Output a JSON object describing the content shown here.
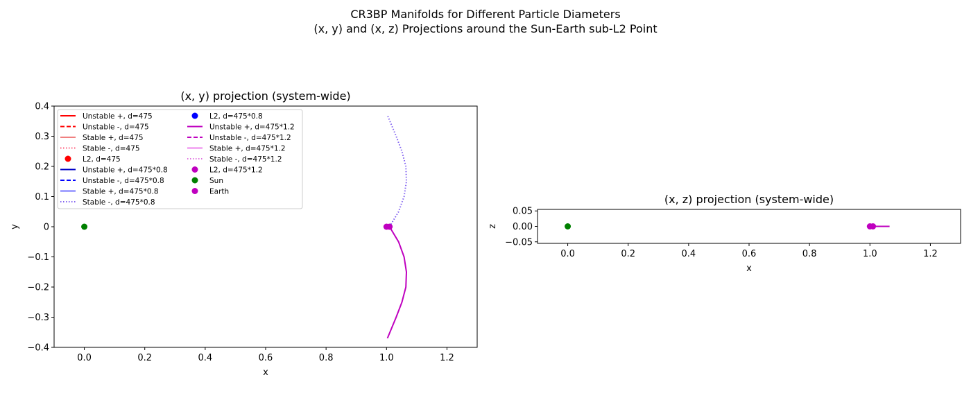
{
  "figure": {
    "suptitle_line1": "CR3BP Manifolds for Different Particle Diameters",
    "suptitle_line2": "(x, y) and (x, z) Projections around the Sun-Earth sub-L2 Point"
  },
  "colors": {
    "red": "#ff0000",
    "lightred": "#f08080",
    "pink": "#ff5a7a",
    "blue": "#0000ff",
    "darkblue": "#0000c8",
    "lightblue": "#7070ff",
    "purpleblue": "#8060f0",
    "magenta": "#bf00bf",
    "violet": "#ee82ee",
    "lightmagenta": "#e070e0",
    "green": "#008000"
  },
  "chart_data": [
    {
      "type": "line",
      "title": "(x, y) projection (system-wide)",
      "xlabel": "x",
      "ylabel": "y",
      "xlim": [
        -0.1,
        1.3
      ],
      "ylim": [
        -0.4,
        0.4
      ],
      "xticks": [
        "0.0",
        "0.2",
        "0.4",
        "0.6",
        "0.8",
        "1.0",
        "1.2"
      ],
      "yticks": [
        "0.4",
        "0.3",
        "0.2",
        "0.1",
        "0",
        "−0.1",
        "−0.2",
        "−0.3",
        "−0.4"
      ],
      "grid": false,
      "legend_position": "top-left",
      "legend": [
        {
          "label": "Unstable +, d=475",
          "style": "solid",
          "color": "red"
        },
        {
          "label": "Unstable -, d=475",
          "style": "dashed",
          "color": "red"
        },
        {
          "label": "Stable +, d=475",
          "style": "solid",
          "color": "lightred"
        },
        {
          "label": "Stable -, d=475",
          "style": "dotted",
          "color": "pink"
        },
        {
          "label": "L2, d=475",
          "style": "marker",
          "color": "red"
        },
        {
          "label": "Unstable +, d=475*0.8",
          "style": "solid",
          "color": "darkblue"
        },
        {
          "label": "Unstable -, d=475*0.8",
          "style": "dashed",
          "color": "blue"
        },
        {
          "label": "Stable +, d=475*0.8",
          "style": "solid",
          "color": "lightblue"
        },
        {
          "label": "Stable -, d=475*0.8",
          "style": "dotted",
          "color": "purpleblue"
        },
        {
          "label": "L2, d=475*0.8",
          "style": "marker",
          "color": "blue"
        },
        {
          "label": "Unstable +, d=475*1.2",
          "style": "solid",
          "color": "magenta"
        },
        {
          "label": "Unstable -, d=475*1.2",
          "style": "dashed",
          "color": "magenta"
        },
        {
          "label": "Stable +, d=475*1.2",
          "style": "solid",
          "color": "violet"
        },
        {
          "label": "Stable -, d=475*1.2",
          "style": "dotted",
          "color": "lightmagenta"
        },
        {
          "label": "L2, d=475*1.2",
          "style": "marker",
          "color": "magenta"
        },
        {
          "label": "Sun",
          "style": "marker",
          "color": "green"
        },
        {
          "label": "Earth",
          "style": "marker",
          "color": "magenta"
        }
      ],
      "curves": [
        {
          "name": "upper manifold branch",
          "color": "purpleblue",
          "style": "dotted",
          "x": [
            1.01,
            1.04,
            1.058,
            1.066,
            1.064,
            1.051,
            1.032,
            1.003
          ],
          "y": [
            0.0,
            0.05,
            0.1,
            0.15,
            0.2,
            0.25,
            0.3,
            0.37
          ]
        },
        {
          "name": "lower manifold branch",
          "color": "magenta",
          "style": "solid",
          "x": [
            1.01,
            1.04,
            1.058,
            1.066,
            1.064,
            1.051,
            1.032,
            1.003
          ],
          "y": [
            0.0,
            -0.05,
            -0.1,
            -0.15,
            -0.2,
            -0.25,
            -0.3,
            -0.37
          ]
        }
      ],
      "points": [
        {
          "name": "Sun",
          "x": 0.0,
          "y": 0.0,
          "color": "green"
        },
        {
          "name": "Earth",
          "x": 1.0,
          "y": 0.0,
          "color": "magenta"
        },
        {
          "name": "L2",
          "x": 1.01,
          "y": 0.0,
          "color": "magenta"
        }
      ]
    },
    {
      "type": "line",
      "title": "(x, z) projection (system-wide)",
      "xlabel": "x",
      "ylabel": "z",
      "xlim": [
        -0.1,
        1.3
      ],
      "ylim": [
        -0.055,
        0.055
      ],
      "xticks": [
        "0.0",
        "0.2",
        "0.4",
        "0.6",
        "0.8",
        "1.0",
        "1.2"
      ],
      "yticks": [
        "0.05",
        "0.00",
        "−0.05"
      ],
      "grid": false,
      "curves": [
        {
          "name": "manifold projection",
          "color": "magenta",
          "style": "solid",
          "x": [
            1.0,
            1.065
          ],
          "y": [
            0.0,
            0.0
          ]
        }
      ],
      "points": [
        {
          "name": "Sun",
          "x": 0.0,
          "y": 0.0,
          "color": "green"
        },
        {
          "name": "Earth",
          "x": 1.0,
          "y": 0.0,
          "color": "magenta"
        },
        {
          "name": "L2",
          "x": 1.01,
          "y": 0.0,
          "color": "magenta"
        }
      ]
    }
  ]
}
